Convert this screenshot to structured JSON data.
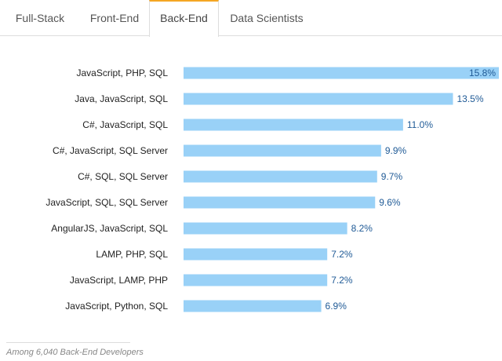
{
  "tabs": [
    {
      "label": "Full-Stack",
      "active": false
    },
    {
      "label": "Front-End",
      "active": false
    },
    {
      "label": "Back-End",
      "active": true
    },
    {
      "label": "Data Scientists",
      "active": false
    }
  ],
  "colors": {
    "bar": "#99d1f7",
    "value_text": "#1f5a96",
    "active_tab_accent": "#f5a623"
  },
  "chart_data": {
    "type": "bar",
    "orientation": "horizontal",
    "categories": [
      "JavaScript, PHP, SQL",
      "Java, JavaScript, SQL",
      "C#, JavaScript, SQL",
      "C#, JavaScript, SQL Server",
      "C#, SQL, SQL Server",
      "JavaScript, SQL, SQL Server",
      "AngularJS, JavaScript, SQL",
      "LAMP, PHP, SQL",
      "JavaScript, LAMP, PHP",
      "JavaScript, Python, SQL"
    ],
    "values": [
      15.8,
      13.5,
      11.0,
      9.9,
      9.7,
      9.6,
      8.2,
      7.2,
      7.2,
      6.9
    ],
    "value_labels": [
      "15.8%",
      "13.5%",
      "11.0%",
      "9.9%",
      "9.7%",
      "9.6%",
      "8.2%",
      "7.2%",
      "7.2%",
      "6.9%"
    ],
    "xlim": [
      0,
      15.8
    ],
    "grid": false,
    "legend": "none"
  },
  "footnote": "Among 6,040 Back-End Developers"
}
